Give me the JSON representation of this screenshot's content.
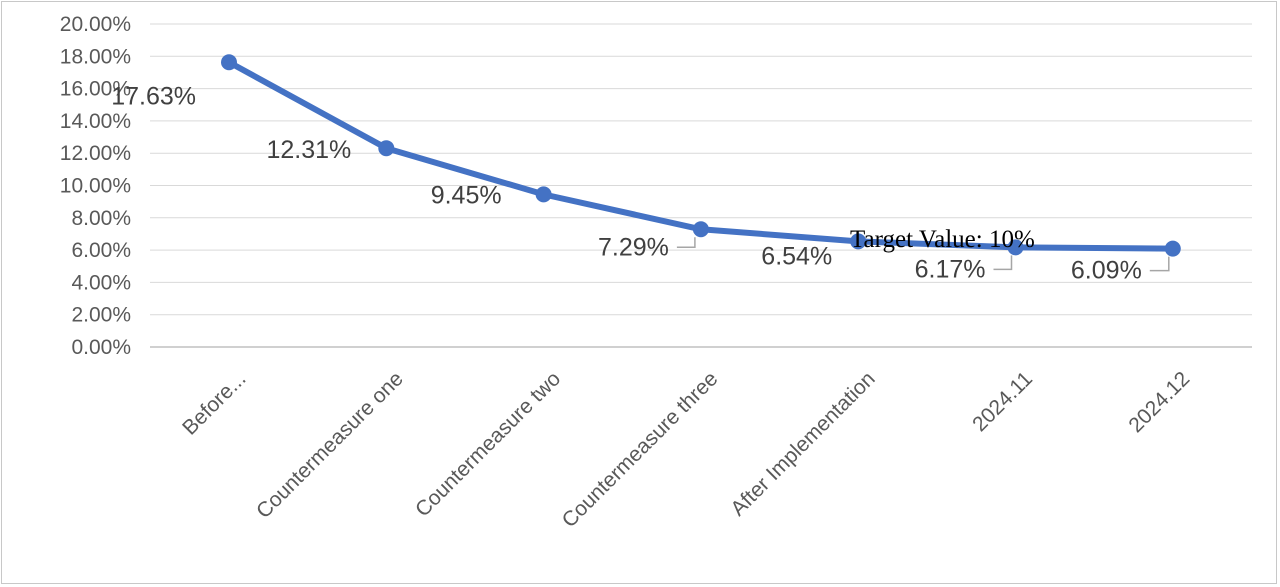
{
  "chart_data": {
    "type": "line",
    "title": "",
    "xlabel": "",
    "ylabel": "",
    "categories": [
      "Before...",
      "Countermeasure one",
      "Countermeasure two",
      "Countermeasure three",
      "After Implementation",
      "2024.11",
      "2024.12"
    ],
    "series": [
      {
        "values": [
          17.63,
          12.31,
          9.45,
          7.29,
          6.54,
          6.17,
          6.09
        ],
        "labels": [
          "17.63%",
          "12.31%",
          "9.45%",
          "7.29%",
          "6.54%",
          "6.17%",
          "6.09%"
        ],
        "color": "#4472c4"
      }
    ],
    "ylim": [
      0,
      20
    ],
    "yticks": [
      "0.00%",
      "2.00%",
      "4.00%",
      "6.00%",
      "8.00%",
      "10.00%",
      "12.00%",
      "14.00%",
      "16.00%",
      "18.00%",
      "20.00%"
    ],
    "grid": true,
    "legend": "none",
    "annotation": "Target Value: 10%"
  }
}
